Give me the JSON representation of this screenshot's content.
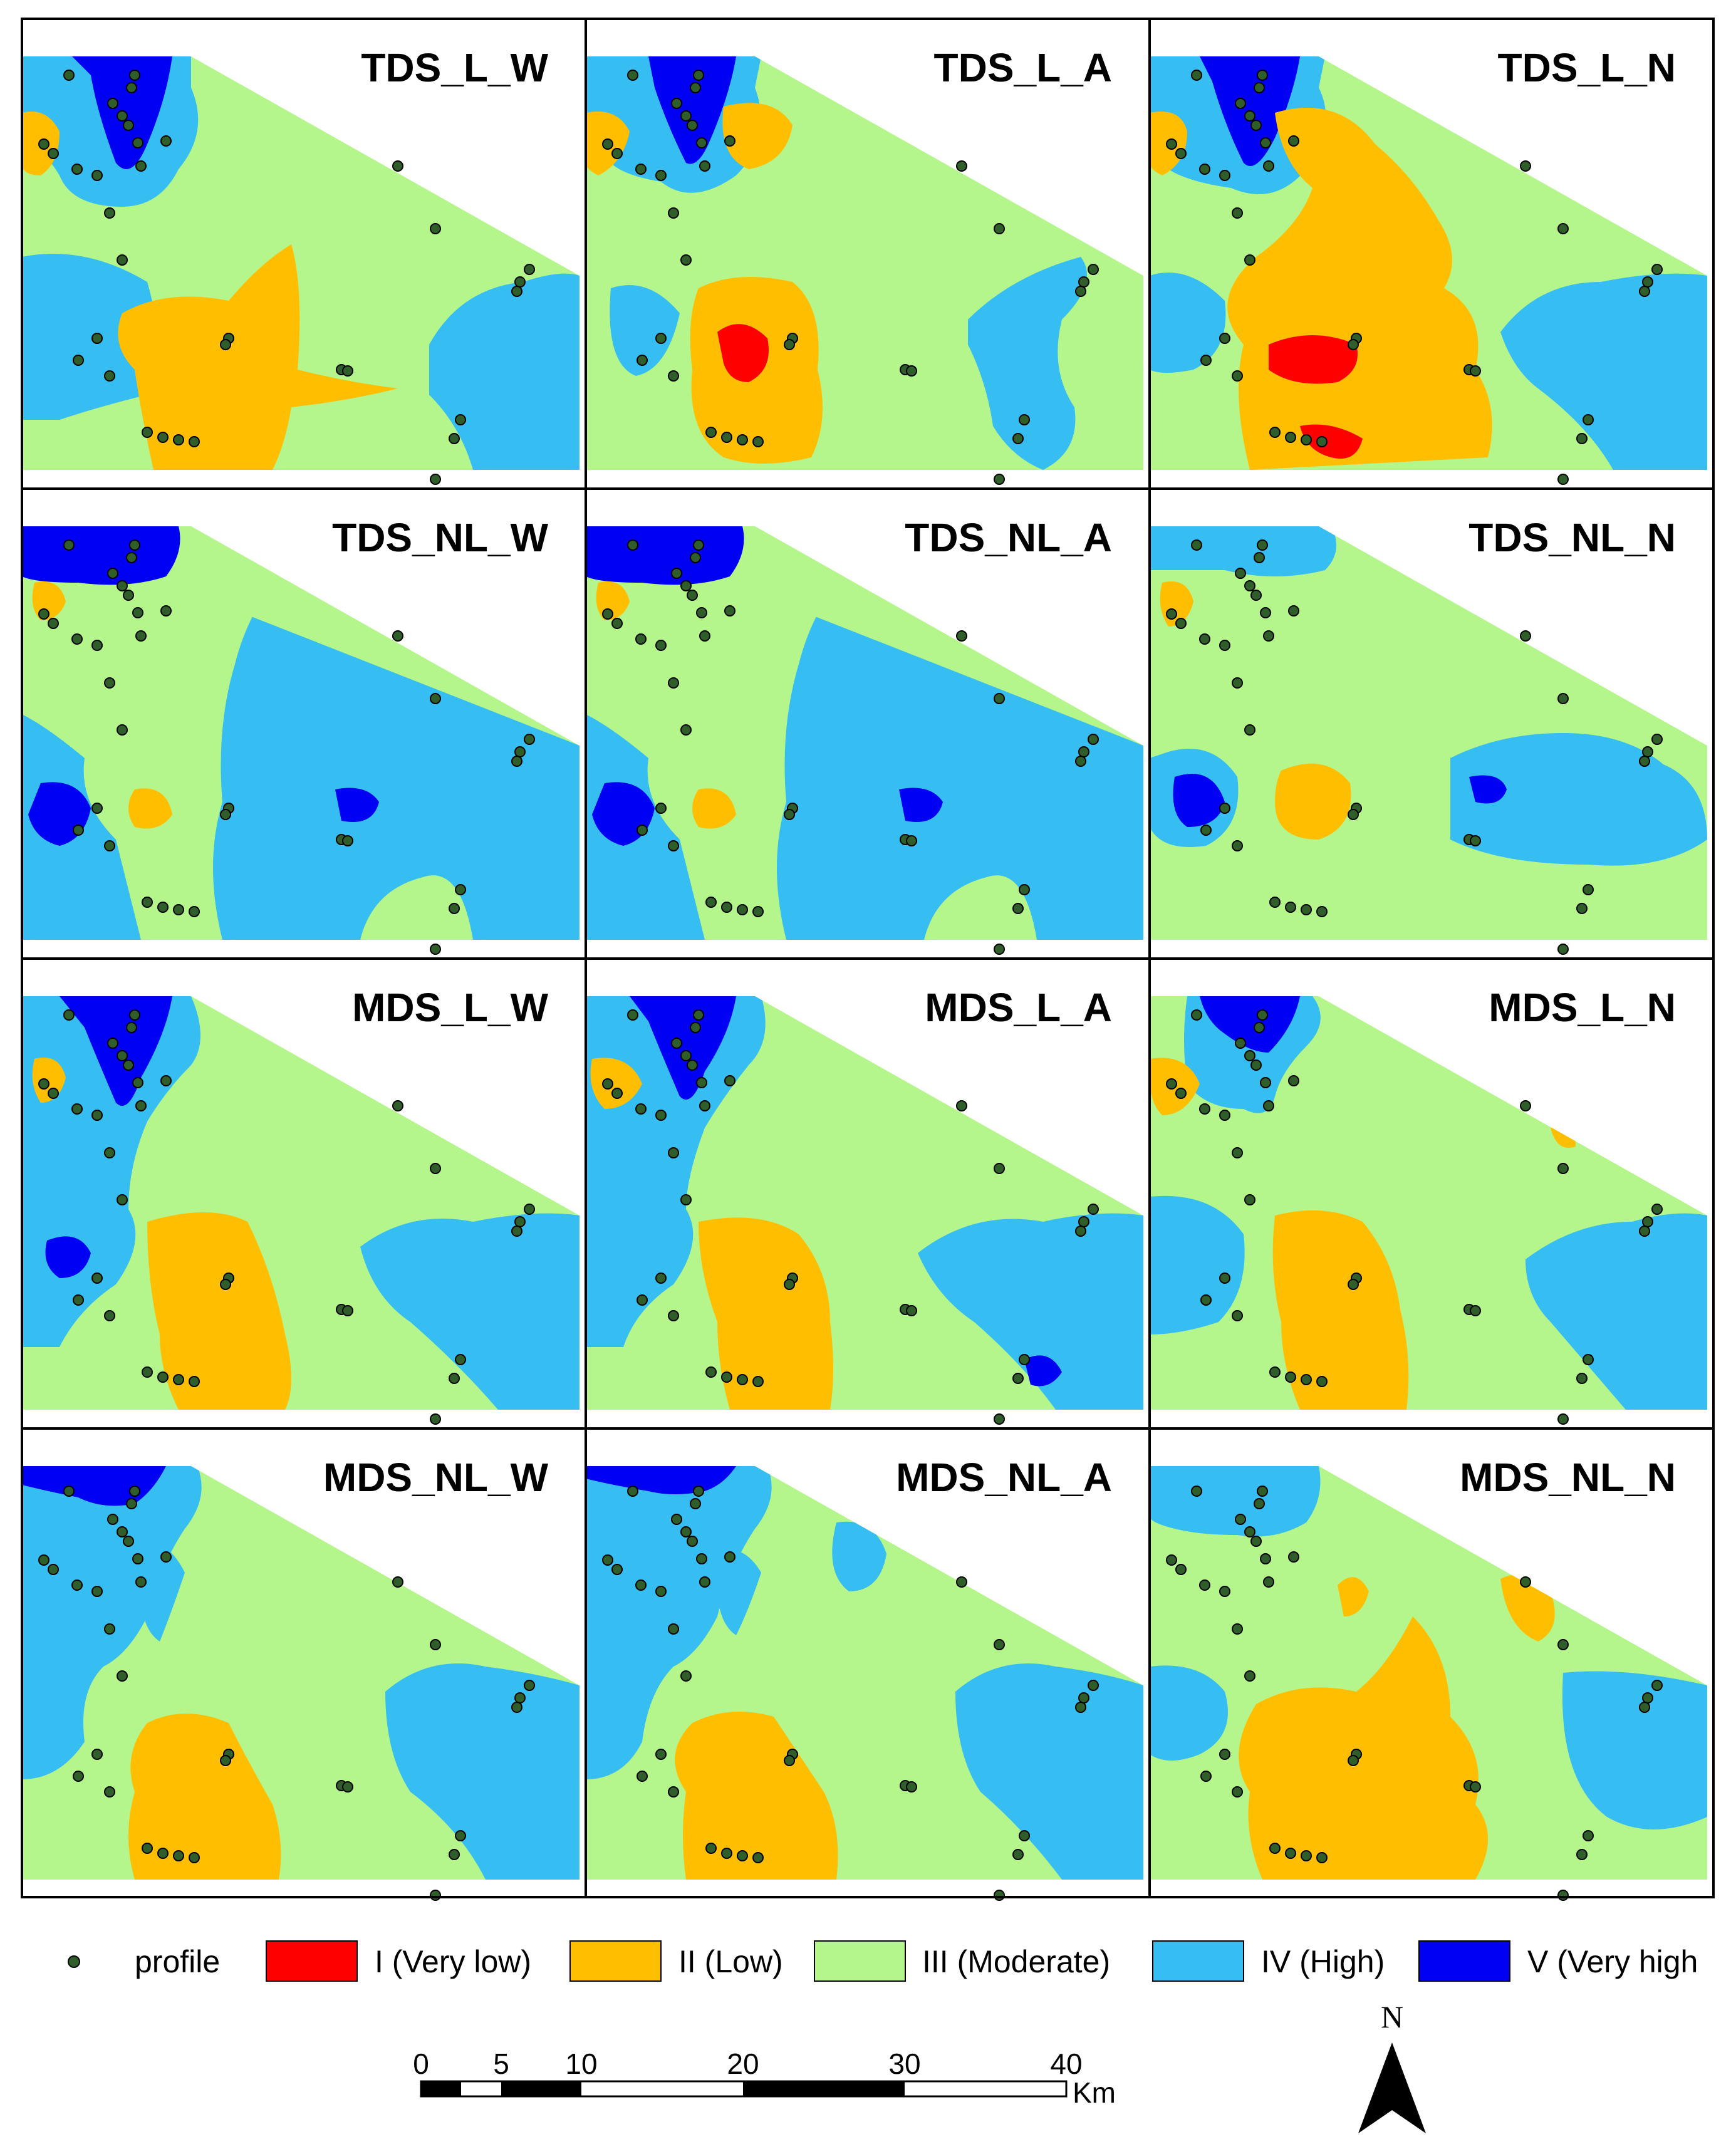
{
  "panels": [
    {
      "title": "TDS_L_W"
    },
    {
      "title": "TDS_L_A"
    },
    {
      "title": "TDS_L_N"
    },
    {
      "title": "TDS_NL_W"
    },
    {
      "title": "TDS_NL_A"
    },
    {
      "title": "TDS_NL_N"
    },
    {
      "title": "MDS_L_W"
    },
    {
      "title": "MDS_L_A"
    },
    {
      "title": "MDS_L_N"
    },
    {
      "title": "MDS_NL_W"
    },
    {
      "title": "MDS_NL_A"
    },
    {
      "title": "MDS_NL_N"
    }
  ],
  "legend": {
    "profile_label": "profile",
    "classes": [
      {
        "label": "I (Very low)",
        "color": "#ff0000"
      },
      {
        "label": "II (Low)",
        "color": "#ffbf00"
      },
      {
        "label": "III (Moderate)",
        "color": "#b4f58c"
      },
      {
        "label": "IV (High)",
        "color": "#36bdf2"
      },
      {
        "label": "V (Very high",
        "color": "#0000f2"
      }
    ],
    "profile_color": "#2f5e2a"
  },
  "scale_bar": {
    "ticks": [
      "0",
      "5",
      "10",
      "20",
      "30",
      "40"
    ],
    "unit": "Km"
  },
  "north_arrow": {
    "label": "N"
  }
}
